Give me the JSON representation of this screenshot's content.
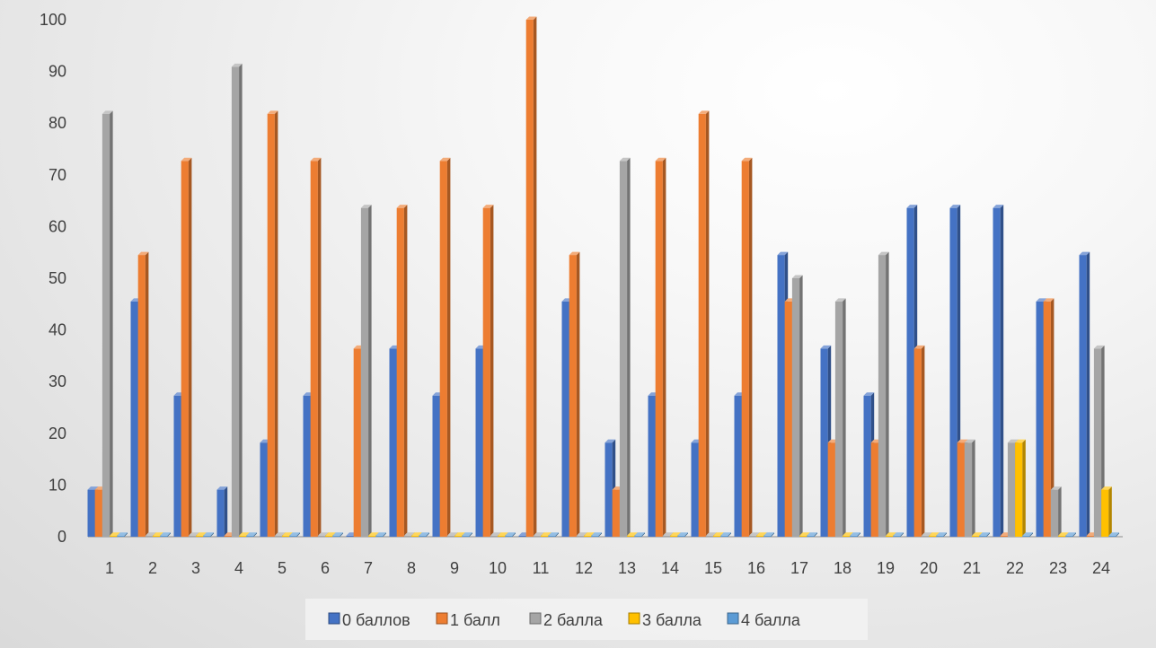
{
  "chart_data": {
    "type": "bar",
    "title": "",
    "xlabel": "",
    "ylabel": "",
    "ylim": [
      0,
      100
    ],
    "yticks": [
      0,
      10,
      20,
      30,
      40,
      50,
      60,
      70,
      80,
      90,
      100
    ],
    "grid": false,
    "legend": "bottom",
    "categories": [
      "1",
      "2",
      "3",
      "4",
      "5",
      "6",
      "7",
      "8",
      "9",
      "10",
      "11",
      "12",
      "13",
      "14",
      "15",
      "16",
      "17",
      "18",
      "19",
      "20",
      "21",
      "22",
      "23",
      "24"
    ],
    "series": [
      {
        "name": "0 баллов",
        "color": "#4472C4",
        "values": [
          9.1,
          45.5,
          27.3,
          9.1,
          18.2,
          27.3,
          0,
          36.4,
          27.3,
          36.4,
          0,
          45.5,
          18.2,
          27.3,
          18.2,
          27.3,
          54.5,
          36.4,
          27.3,
          63.6,
          63.6,
          63.6,
          45.5,
          54.5
        ]
      },
      {
        "name": "1 балл",
        "color": "#ED7D31",
        "values": [
          9.1,
          54.5,
          72.7,
          0,
          81.8,
          72.7,
          36.4,
          63.6,
          72.7,
          63.6,
          100,
          54.5,
          9.1,
          72.7,
          81.8,
          72.7,
          45.5,
          18.2,
          18.2,
          36.4,
          18.2,
          0,
          45.5,
          0
        ]
      },
      {
        "name": "2 балла",
        "color": "#A5A5A5",
        "values": [
          81.8,
          0,
          0,
          90.9,
          0,
          0,
          63.6,
          0,
          0,
          0,
          0,
          0,
          72.7,
          0,
          0,
          0,
          50,
          45.5,
          54.5,
          0,
          18.2,
          18.2,
          9.1,
          36.4
        ]
      },
      {
        "name": "3 балла",
        "color": "#FFC000",
        "values": [
          0,
          0,
          0,
          0,
          0,
          0,
          0,
          0,
          0,
          0,
          0,
          0,
          0,
          0,
          0,
          0,
          0,
          0,
          0,
          0,
          0,
          18.2,
          0,
          9.1
        ]
      },
      {
        "name": "4 балла",
        "color": "#5B9BD5",
        "values": [
          0,
          0,
          0,
          0,
          0,
          0,
          0,
          0,
          0,
          0,
          0,
          0,
          0,
          0,
          0,
          0,
          0,
          0,
          0,
          0,
          0,
          0,
          0,
          0
        ]
      }
    ]
  }
}
